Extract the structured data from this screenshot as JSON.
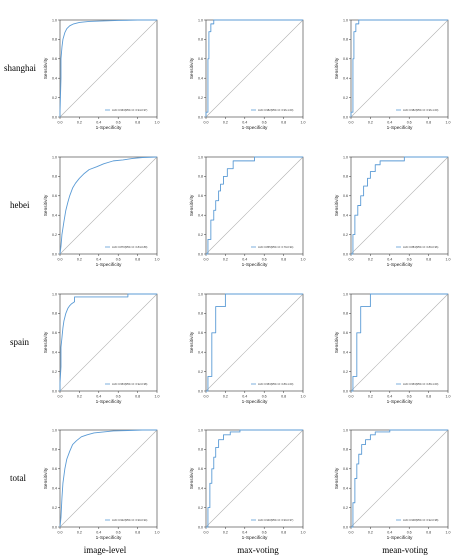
{
  "row_labels": [
    "shanghai",
    "hebei",
    "spain",
    "total"
  ],
  "col_labels": [
    "image-level",
    "max-voting",
    "mean-voting"
  ],
  "axis_text": {
    "xlabel": "1-Specificity",
    "ylabel": "Sensitivity",
    "ticks": [
      "0.0",
      "0.2",
      "0.4",
      "0.6",
      "0.8",
      "1.0"
    ]
  },
  "colors": {
    "roc": "#5b9bd5",
    "diagonal": "#b0b0b0",
    "axes": "#333333"
  },
  "chart_data": [
    {
      "type": "line",
      "row": "shanghai",
      "col": "image-level",
      "xlabel": "1-Specificity",
      "ylabel": "Sensitivity",
      "xlim": [
        0,
        1
      ],
      "ylim": [
        0,
        1
      ],
      "legend_text": "AUC 0.963(95% CI: 0.94-0.97)",
      "legend_position": "lower-right",
      "series": [
        {
          "x": [
            0,
            0.0,
            0.01,
            0.01,
            0.02,
            0.03,
            0.05,
            0.07,
            0.1,
            0.14,
            0.2,
            0.3,
            0.45,
            0.6,
            0.8,
            1.0
          ],
          "y": [
            0,
            0.05,
            0.4,
            0.6,
            0.72,
            0.8,
            0.87,
            0.91,
            0.94,
            0.96,
            0.975,
            0.985,
            0.99,
            0.995,
            1.0,
            1.0
          ]
        }
      ]
    },
    {
      "type": "line",
      "row": "shanghai",
      "col": "max-voting",
      "xlabel": "1-Specificity",
      "ylabel": "Sensitivity",
      "xlim": [
        0,
        1
      ],
      "ylim": [
        0,
        1
      ],
      "legend_text": "AUC 0.982(95% CI: 0.96-1.00)",
      "legend_position": "lower-right",
      "series": [
        {
          "x": [
            0,
            0.0,
            0.02,
            0.02,
            0.03,
            0.03,
            0.05,
            0.05,
            0.08,
            0.08,
            1.0
          ],
          "y": [
            0,
            0.05,
            0.05,
            0.6,
            0.6,
            0.88,
            0.88,
            0.96,
            0.96,
            1.0,
            1.0
          ]
        }
      ]
    },
    {
      "type": "line",
      "row": "shanghai",
      "col": "mean-voting",
      "xlabel": "1-Specificity",
      "ylabel": "Sensitivity",
      "xlim": [
        0,
        1
      ],
      "ylim": [
        0,
        1
      ],
      "legend_text": "AUC 0.982(95% CI: 0.96-1.00)",
      "legend_position": "lower-right",
      "series": [
        {
          "x": [
            0,
            0.0,
            0.02,
            0.02,
            0.03,
            0.03,
            0.05,
            0.05,
            0.08,
            0.08,
            1.0
          ],
          "y": [
            0,
            0.05,
            0.05,
            0.6,
            0.6,
            0.88,
            0.88,
            0.96,
            0.96,
            1.0,
            1.0
          ]
        }
      ]
    },
    {
      "type": "line",
      "row": "hebei",
      "col": "image-level",
      "xlabel": "1-Specificity",
      "ylabel": "Sensitivity",
      "xlim": [
        0,
        1
      ],
      "ylim": [
        0,
        1
      ],
      "legend_text": "AUC 0.870(95% CI: 0.84-0.89)",
      "legend_position": "lower-right",
      "series": [
        {
          "x": [
            0,
            0.01,
            0.02,
            0.04,
            0.06,
            0.08,
            0.1,
            0.13,
            0.16,
            0.2,
            0.25,
            0.3,
            0.38,
            0.45,
            0.55,
            0.65,
            0.75,
            0.85,
            1.0
          ],
          "y": [
            0,
            0.08,
            0.2,
            0.33,
            0.45,
            0.53,
            0.6,
            0.68,
            0.73,
            0.78,
            0.83,
            0.87,
            0.9,
            0.93,
            0.96,
            0.97,
            0.985,
            0.995,
            1.0
          ]
        }
      ]
    },
    {
      "type": "line",
      "row": "hebei",
      "col": "max-voting",
      "xlabel": "1-Specificity",
      "ylabel": "Sensitivity",
      "xlim": [
        0,
        1
      ],
      "ylim": [
        0,
        1
      ],
      "legend_text": "AUC 0.865(95% CI: 0.79-0.94)",
      "legend_position": "lower-right",
      "series": [
        {
          "x": [
            0,
            0.02,
            0.02,
            0.05,
            0.05,
            0.08,
            0.08,
            0.1,
            0.1,
            0.13,
            0.13,
            0.15,
            0.15,
            0.18,
            0.18,
            0.22,
            0.22,
            0.28,
            0.28,
            0.5,
            0.5,
            1.0
          ],
          "y": [
            0,
            0,
            0.15,
            0.15,
            0.35,
            0.35,
            0.45,
            0.45,
            0.55,
            0.55,
            0.65,
            0.65,
            0.72,
            0.72,
            0.8,
            0.8,
            0.88,
            0.88,
            0.96,
            0.96,
            1.0,
            1.0
          ]
        }
      ]
    },
    {
      "type": "line",
      "row": "hebei",
      "col": "mean-voting",
      "xlabel": "1-Specificity",
      "ylabel": "Sensitivity",
      "xlim": [
        0,
        1
      ],
      "ylim": [
        0,
        1
      ],
      "legend_text": "AUC 0.884(95% CI: 0.80-0.96)",
      "legend_position": "lower-right",
      "series": [
        {
          "x": [
            0,
            0.02,
            0.02,
            0.04,
            0.04,
            0.07,
            0.07,
            0.1,
            0.1,
            0.13,
            0.13,
            0.17,
            0.17,
            0.2,
            0.2,
            0.25,
            0.25,
            0.3,
            0.3,
            0.55,
            0.55,
            1.0
          ],
          "y": [
            0,
            0,
            0.2,
            0.2,
            0.4,
            0.4,
            0.5,
            0.5,
            0.6,
            0.6,
            0.7,
            0.7,
            0.78,
            0.78,
            0.85,
            0.85,
            0.92,
            0.92,
            0.96,
            0.96,
            1.0,
            1.0
          ]
        }
      ]
    },
    {
      "type": "line",
      "row": "spain",
      "col": "image-level",
      "xlabel": "1-Specificity",
      "ylabel": "Sensitivity",
      "xlim": [
        0,
        1
      ],
      "ylim": [
        0,
        1
      ],
      "legend_text": "AUC 0.953(95% CI: 0.92-0.98)",
      "legend_position": "lower-right",
      "series": [
        {
          "x": [
            0,
            0.0,
            0.01,
            0.01,
            0.02,
            0.03,
            0.04,
            0.06,
            0.08,
            0.1,
            0.12,
            0.15,
            0.15,
            0.7,
            0.7,
            1.0
          ],
          "y": [
            0,
            0.08,
            0.25,
            0.45,
            0.55,
            0.65,
            0.72,
            0.8,
            0.85,
            0.88,
            0.9,
            0.92,
            0.97,
            0.97,
            1.0,
            1.0
          ]
        }
      ]
    },
    {
      "type": "line",
      "row": "spain",
      "col": "max-voting",
      "xlabel": "1-Specificity",
      "ylabel": "Sensitivity",
      "xlim": [
        0,
        1
      ],
      "ylim": [
        0,
        1
      ],
      "legend_text": "AUC 0.953(95% CI: 0.89-1.00)",
      "legend_position": "lower-right",
      "series": [
        {
          "x": [
            0,
            0.02,
            0.02,
            0.06,
            0.06,
            0.1,
            0.1,
            0.2,
            0.2,
            1.0
          ],
          "y": [
            0,
            0,
            0.15,
            0.15,
            0.6,
            0.6,
            0.87,
            0.87,
            1.0,
            1.0
          ]
        }
      ]
    },
    {
      "type": "line",
      "row": "spain",
      "col": "mean-voting",
      "xlabel": "1-Specificity",
      "ylabel": "Sensitivity",
      "xlim": [
        0,
        1
      ],
      "ylim": [
        0,
        1
      ],
      "legend_text": "AUC 0.953(95% CI: 0.89-1.00)",
      "legend_position": "lower-right",
      "series": [
        {
          "x": [
            0,
            0.02,
            0.02,
            0.06,
            0.06,
            0.1,
            0.1,
            0.2,
            0.2,
            1.0
          ],
          "y": [
            0,
            0,
            0.15,
            0.15,
            0.6,
            0.6,
            0.87,
            0.87,
            1.0,
            1.0
          ]
        }
      ]
    },
    {
      "type": "line",
      "row": "total",
      "col": "image-level",
      "xlabel": "1-Specificity",
      "ylabel": "Sensitivity",
      "xlim": [
        0,
        1
      ],
      "ylim": [
        0,
        1
      ],
      "legend_text": "AUC 0.922(95% CI: 0.90-0.94)",
      "legend_position": "lower-right",
      "series": [
        {
          "x": [
            0,
            0.01,
            0.02,
            0.03,
            0.05,
            0.07,
            0.1,
            0.13,
            0.17,
            0.22,
            0.28,
            0.35,
            0.45,
            0.55,
            0.7,
            0.85,
            1.0
          ],
          "y": [
            0,
            0.1,
            0.3,
            0.45,
            0.6,
            0.7,
            0.78,
            0.85,
            0.89,
            0.93,
            0.95,
            0.97,
            0.98,
            0.99,
            0.995,
            1.0,
            1.0
          ]
        }
      ]
    },
    {
      "type": "line",
      "row": "total",
      "col": "max-voting",
      "xlabel": "1-Specificity",
      "ylabel": "Sensitivity",
      "xlim": [
        0,
        1
      ],
      "ylim": [
        0,
        1
      ],
      "legend_text": "AUC 0.940(95% CI: 0.90-0.97)",
      "legend_position": "lower-right",
      "series": [
        {
          "x": [
            0,
            0.02,
            0.02,
            0.04,
            0.04,
            0.06,
            0.06,
            0.08,
            0.08,
            0.1,
            0.1,
            0.13,
            0.13,
            0.18,
            0.18,
            0.25,
            0.25,
            0.35,
            0.35,
            1.0
          ],
          "y": [
            0,
            0,
            0.2,
            0.2,
            0.45,
            0.45,
            0.6,
            0.6,
            0.72,
            0.72,
            0.82,
            0.82,
            0.9,
            0.9,
            0.95,
            0.95,
            0.98,
            0.98,
            1.0,
            1.0
          ]
        }
      ]
    },
    {
      "type": "line",
      "row": "total",
      "col": "mean-voting",
      "xlabel": "1-Specificity",
      "ylabel": "Sensitivity",
      "xlim": [
        0,
        1
      ],
      "ylim": [
        0,
        1
      ],
      "legend_text": "AUC 0.948(95% CI: 0.92-0.98)",
      "legend_position": "lower-right",
      "series": [
        {
          "x": [
            0,
            0.02,
            0.02,
            0.04,
            0.04,
            0.06,
            0.06,
            0.08,
            0.08,
            0.11,
            0.11,
            0.15,
            0.15,
            0.2,
            0.2,
            0.25,
            0.25,
            0.4,
            0.4,
            1.0
          ],
          "y": [
            0,
            0,
            0.25,
            0.25,
            0.5,
            0.5,
            0.65,
            0.65,
            0.75,
            0.75,
            0.85,
            0.85,
            0.9,
            0.9,
            0.95,
            0.95,
            0.98,
            0.98,
            1.0,
            1.0
          ]
        }
      ]
    }
  ]
}
